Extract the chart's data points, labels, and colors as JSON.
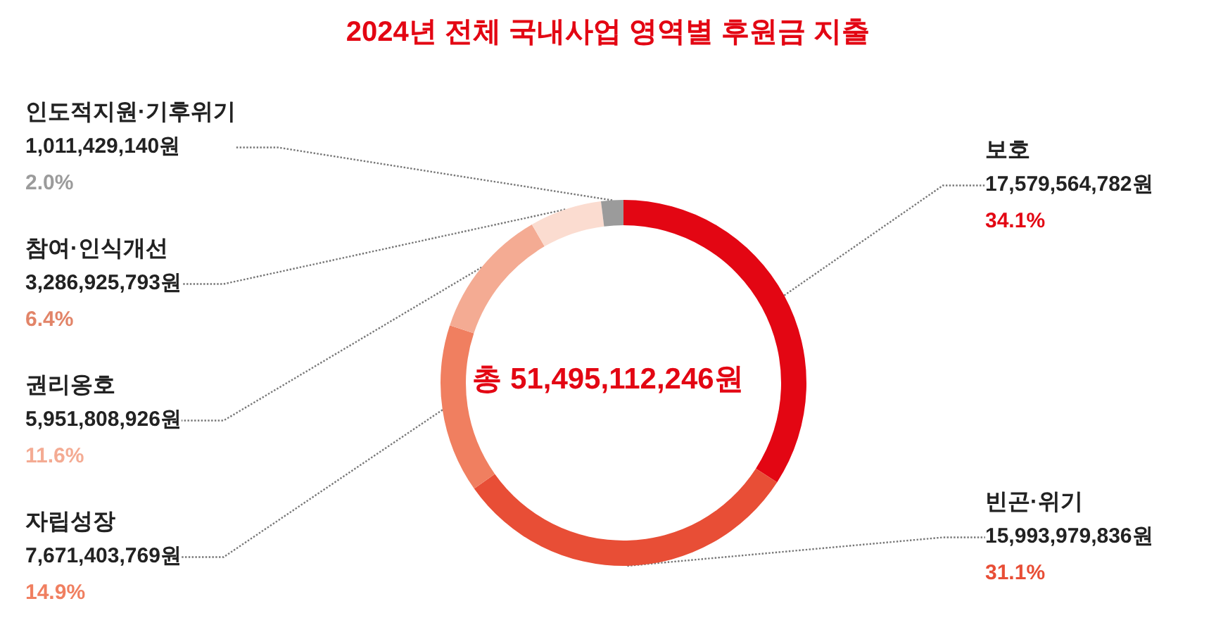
{
  "chart_data": {
    "type": "donut",
    "title": "2024년 전체 국내사업 영역별 후원금 지출",
    "categories": [
      "보호",
      "빈곤·위기",
      "자립성장",
      "권리옹호",
      "참여·인식개선",
      "인도적지원·기후위기"
    ],
    "values": [
      17579564782,
      15993979836,
      7671403769,
      5951808926,
      3286925793,
      1011429140
    ],
    "colors": [
      "#e30613",
      "#e84e36",
      "#f07f60",
      "#f4ab93",
      "#fbdcd0",
      "#9b9b9b"
    ],
    "value_labels": [
      "17,579,564,782원\n34.1%",
      "15,993,979,836원\n31.1%",
      "7,671,403,769원\n14.9%",
      "5,951,808,926원\n11.6%",
      "3,286,925,793원\n6.4%",
      "1,011,429,140원\n2.0%"
    ],
    "annotations": [
      "총 51,495,112,246원"
    ],
    "legend": false
  }
}
